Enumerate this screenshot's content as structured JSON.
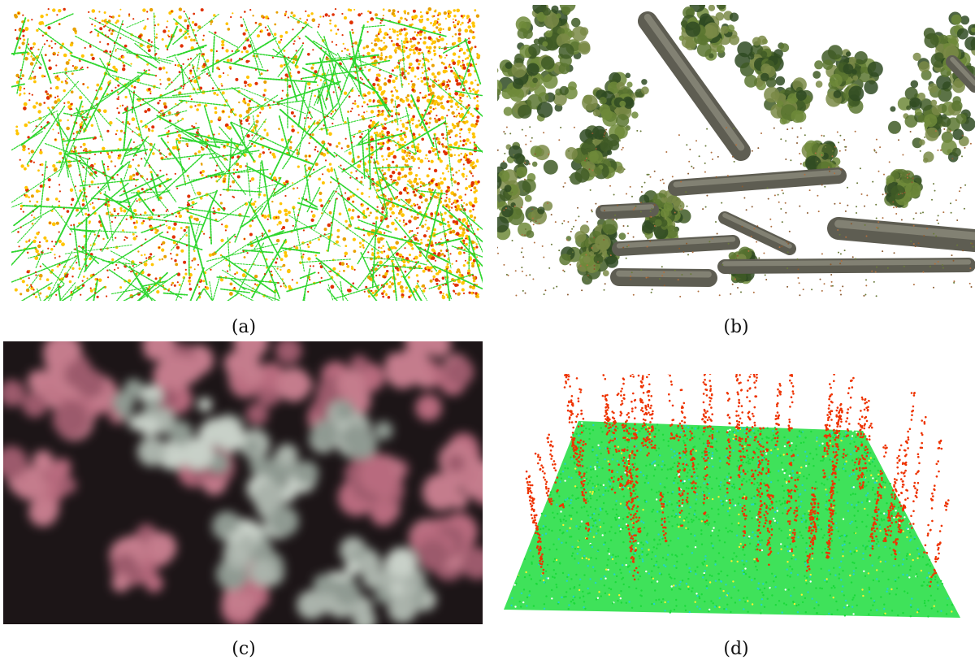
{
  "figure": {
    "panels": [
      {
        "label": "(a)",
        "kind": "top-view-point-cloud",
        "colors": [
          "#2fd62f",
          "#ffc400",
          "#e8a000",
          "#e03000"
        ]
      },
      {
        "label": "(b)",
        "kind": "textured-3d-reconstruction",
        "colors": [
          "#6a6a5a",
          "#4c6a2c",
          "#ffffff"
        ]
      },
      {
        "label": "(c)",
        "kind": "color-infrared-aerial-image",
        "colors": [
          "#1b1416",
          "#b86a7e",
          "#c8d0c8"
        ]
      },
      {
        "label": "(d)",
        "kind": "oblique-point-cloud",
        "colors": [
          "#22ee44",
          "#22d0d0",
          "#ee3300"
        ]
      }
    ]
  }
}
